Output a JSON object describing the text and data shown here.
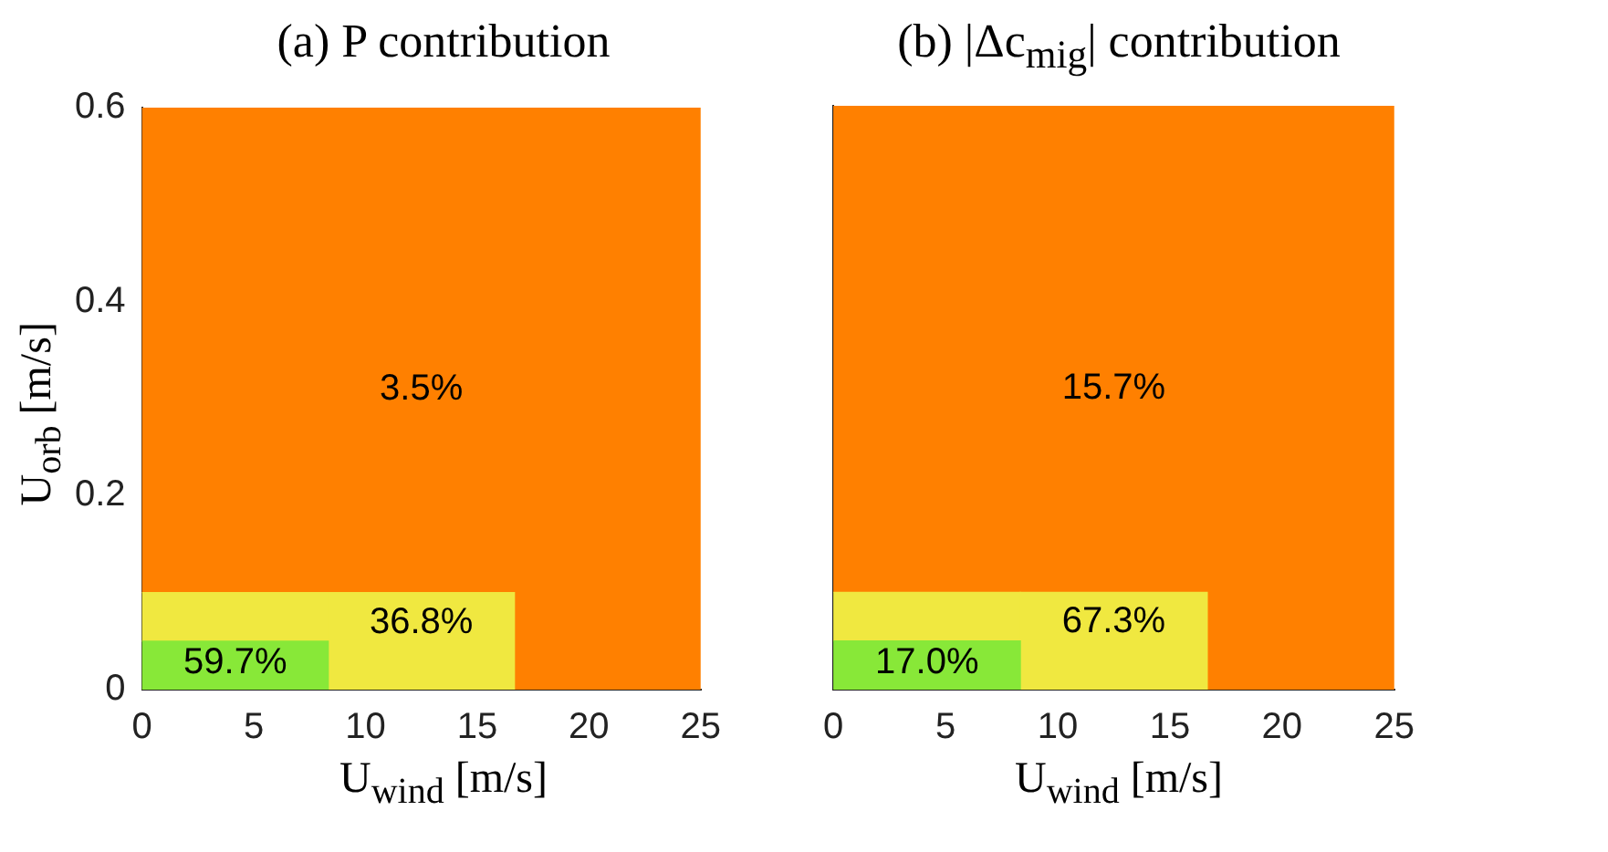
{
  "chart_data": [
    {
      "type": "bar",
      "stacked": true,
      "title": "(a) P contribution",
      "xlabel": "U$_{wind}$ [m/s]",
      "ylabel": "U$_{orb}$ [m/s]",
      "x": [
        4.17,
        12.5,
        20.83
      ],
      "series": [
        {
          "color": "#88e838",
          "values": [
            0.05,
            null,
            null
          ]
        },
        {
          "color": "#f0e840",
          "values": [
            0.05,
            0.1,
            null
          ]
        },
        {
          "color": "#ff8000",
          "values": [
            0.5,
            0.5,
            0.6
          ]
        }
      ],
      "annotations": [
        "3.5%",
        "36.8%",
        "59.7%"
      ],
      "xlim": [
        0,
        25
      ],
      "xticks": [
        0,
        5,
        10,
        15,
        20,
        25
      ],
      "ylim": [
        0,
        0.6
      ],
      "yticks": [
        0,
        0.2,
        0.4,
        0.6
      ]
    },
    {
      "type": "bar",
      "stacked": true,
      "title": "(b) |Δc$_{mig}$| contribution",
      "xlabel": "U$_{wind}$ [m/s]",
      "x": [
        4.17,
        12.5,
        20.83
      ],
      "series": [
        {
          "color": "#88e838",
          "values": [
            0.05,
            null,
            null
          ]
        },
        {
          "color": "#f0e840",
          "values": [
            0.05,
            0.1,
            null
          ]
        },
        {
          "color": "#ff8000",
          "values": [
            0.5,
            0.5,
            0.6
          ]
        }
      ],
      "annotations": [
        "15.7%",
        "67.3%",
        "17.0%"
      ],
      "xlim": [
        0,
        25
      ],
      "xticks": [
        0,
        5,
        10,
        15,
        20,
        25
      ],
      "ylim": [
        0,
        0.6
      ],
      "yticks": [
        0,
        0.2,
        0.4,
        0.6
      ],
      "tick_labels": "x"
    }
  ]
}
